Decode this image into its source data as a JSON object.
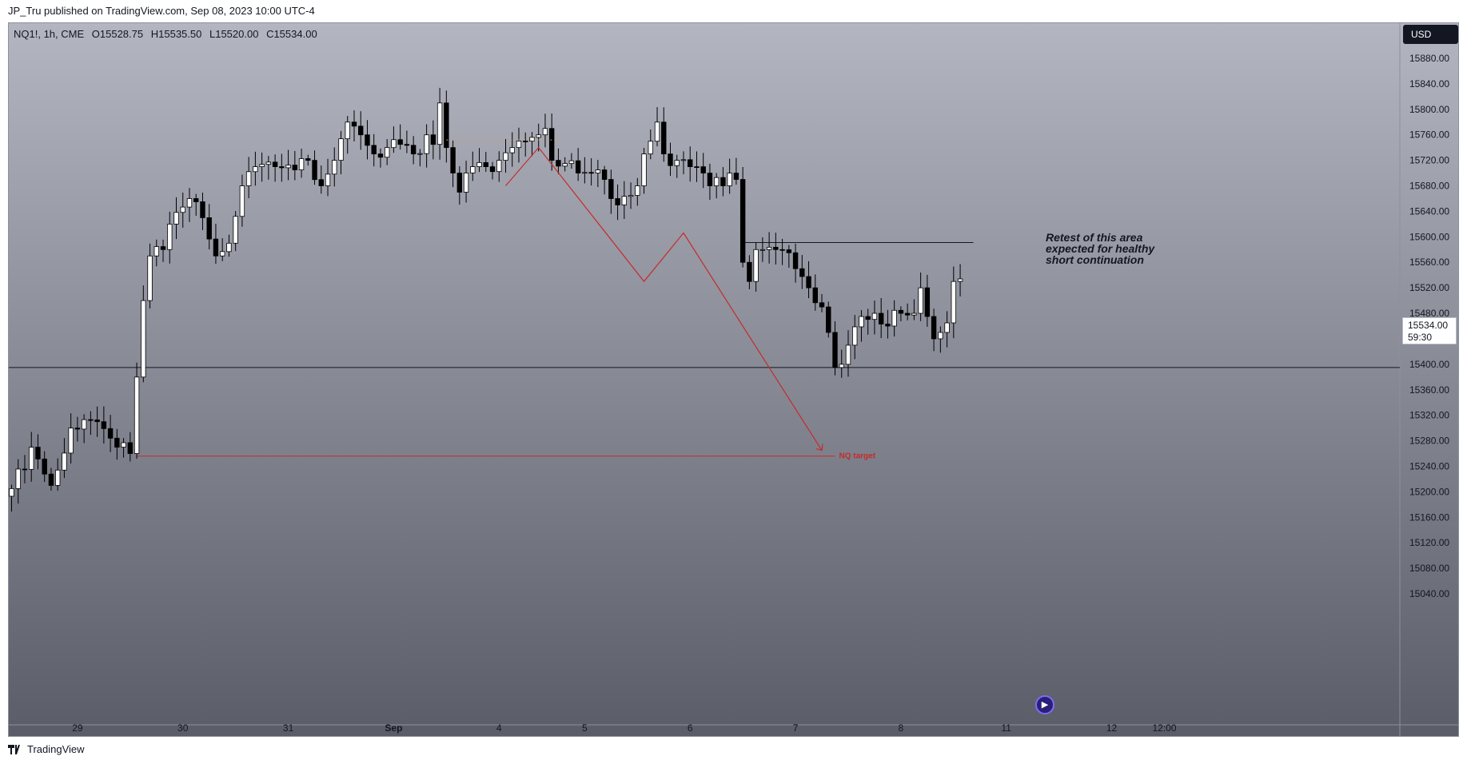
{
  "header": {
    "published_text": "JP_Tru published on TradingView.com, Sep 08, 2023 10:00 UTC-4"
  },
  "legend": {
    "symbol": "NQ1!, 1h, CME",
    "open": "O15528.75",
    "high": "H15535.50",
    "low": "L15520.00",
    "close": "C15534.00"
  },
  "currency_button": "USD",
  "last_price": {
    "price": "15534.00",
    "countdown": "59:30"
  },
  "annotation": {
    "lines": [
      "Retest of this area",
      "expected for healthy",
      "short continuation"
    ]
  },
  "target_label": "NQ target",
  "footer": {
    "brand": "TradingView"
  },
  "colors": {
    "background_top": "#b3b6c1",
    "background_bottom": "#5a5d68",
    "candle_up": "#ffffff",
    "candle_down": "#000000",
    "drawing_red": "#c62a2a",
    "horizontal_line": "#131722"
  },
  "icons": {
    "replay": "replay-icon",
    "logo": "tradingview-logo-icon"
  },
  "chart_data": {
    "type": "candlestick",
    "symbol": "NQ1!",
    "interval": "1h",
    "y_ticks": [
      15880,
      15840,
      15800,
      15760,
      15720,
      15680,
      15640,
      15600,
      15560,
      15520,
      15480,
      15440,
      15400,
      15360,
      15320,
      15280,
      15240,
      15200,
      15160,
      15120,
      15080,
      15040
    ],
    "y_tick_labels": [
      "15880.00",
      "15840.00",
      "15800.00",
      "15760.00",
      "15720.00",
      "15680.00",
      "15640.00",
      "15600.00",
      "15560.00",
      "15520.00",
      "15480.00",
      "15440.00",
      "15400.00",
      "15360.00",
      "15320.00",
      "15280.00",
      "15240.00",
      "15200.00",
      "15160.00",
      "15120.00",
      "15080.00",
      "15040.00"
    ],
    "x_ticks": [
      {
        "label": "29",
        "bar": 10
      },
      {
        "label": "30",
        "bar": 26
      },
      {
        "label": "31",
        "bar": 42
      },
      {
        "label": "Sep",
        "bar": 58
      },
      {
        "label": "4",
        "bar": 74
      },
      {
        "label": "5",
        "bar": 87
      },
      {
        "label": "6",
        "bar": 103
      },
      {
        "label": "7",
        "bar": 119
      },
      {
        "label": "8",
        "bar": 135
      },
      {
        "label": "11",
        "bar": 151
      },
      {
        "label": "12",
        "bar": 167
      },
      {
        "label": "12:00",
        "bar": 175
      }
    ],
    "anchors": [
      {
        "bar": 0,
        "price": 15205
      },
      {
        "bar": 3,
        "price": 15270
      },
      {
        "bar": 6,
        "price": 15210
      },
      {
        "bar": 9,
        "price": 15300
      },
      {
        "bar": 13,
        "price": 15310
      },
      {
        "bar": 16,
        "price": 15270
      },
      {
        "bar": 18,
        "price": 15260
      },
      {
        "bar": 19,
        "price": 15380
      },
      {
        "bar": 20,
        "price": 15500
      },
      {
        "bar": 21,
        "price": 15570
      },
      {
        "bar": 23,
        "price": 15580
      },
      {
        "bar": 24,
        "price": 15620
      },
      {
        "bar": 27,
        "price": 15660
      },
      {
        "bar": 29,
        "price": 15630
      },
      {
        "bar": 31,
        "price": 15570
      },
      {
        "bar": 33,
        "price": 15590
      },
      {
        "bar": 35,
        "price": 15680
      },
      {
        "bar": 37,
        "price": 15710
      },
      {
        "bar": 40,
        "price": 15710
      },
      {
        "bar": 43,
        "price": 15705
      },
      {
        "bar": 45,
        "price": 15720
      },
      {
        "bar": 47,
        "price": 15680
      },
      {
        "bar": 49,
        "price": 15720
      },
      {
        "bar": 51,
        "price": 15780
      },
      {
        "bar": 53,
        "price": 15760
      },
      {
        "bar": 55,
        "price": 15730
      },
      {
        "bar": 57,
        "price": 15740
      },
      {
        "bar": 59,
        "price": 15745
      },
      {
        "bar": 61,
        "price": 15730
      },
      {
        "bar": 63,
        "price": 15760
      },
      {
        "bar": 64,
        "price": 15745
      },
      {
        "bar": 65,
        "price": 15810
      },
      {
        "bar": 66,
        "price": 15740
      },
      {
        "bar": 67,
        "price": 15700
      },
      {
        "bar": 68,
        "price": 15670
      },
      {
        "bar": 70,
        "price": 15710
      },
      {
        "bar": 72,
        "price": 15710
      },
      {
        "bar": 74,
        "price": 15720
      },
      {
        "bar": 76,
        "price": 15740
      },
      {
        "bar": 78,
        "price": 15750
      },
      {
        "bar": 80,
        "price": 15760
      },
      {
        "bar": 81,
        "price": 15770
      },
      {
        "bar": 82,
        "price": 15720
      },
      {
        "bar": 84,
        "price": 15715
      },
      {
        "bar": 86,
        "price": 15700
      },
      {
        "bar": 88,
        "price": 15700
      },
      {
        "bar": 89,
        "price": 15705
      },
      {
        "bar": 90,
        "price": 15690
      },
      {
        "bar": 91,
        "price": 15660
      },
      {
        "bar": 92,
        "price": 15650
      },
      {
        "bar": 94,
        "price": 15665
      },
      {
        "bar": 95,
        "price": 15680
      },
      {
        "bar": 96,
        "price": 15730
      },
      {
        "bar": 97,
        "price": 15750
      },
      {
        "bar": 98,
        "price": 15780
      },
      {
        "bar": 99,
        "price": 15730
      },
      {
        "bar": 101,
        "price": 15720
      },
      {
        "bar": 103,
        "price": 15710
      },
      {
        "bar": 105,
        "price": 15700
      },
      {
        "bar": 106,
        "price": 15680
      },
      {
        "bar": 108,
        "price": 15680
      },
      {
        "bar": 109,
        "price": 15700
      },
      {
        "bar": 110,
        "price": 15690
      },
      {
        "bar": 111,
        "price": 15560
      },
      {
        "bar": 112,
        "price": 15530
      },
      {
        "bar": 113,
        "price": 15580
      },
      {
        "bar": 114,
        "price": 15580
      },
      {
        "bar": 116,
        "price": 15580
      },
      {
        "bar": 118,
        "price": 15575
      },
      {
        "bar": 119,
        "price": 15550
      },
      {
        "bar": 121,
        "price": 15520
      },
      {
        "bar": 123,
        "price": 15490
      },
      {
        "bar": 124,
        "price": 15450
      },
      {
        "bar": 125,
        "price": 15395
      },
      {
        "bar": 126,
        "price": 15400
      },
      {
        "bar": 127,
        "price": 15430
      },
      {
        "bar": 129,
        "price": 15475
      },
      {
        "bar": 131,
        "price": 15480
      },
      {
        "bar": 133,
        "price": 15460
      },
      {
        "bar": 135,
        "price": 15480
      },
      {
        "bar": 137,
        "price": 15480
      },
      {
        "bar": 138,
        "price": 15520
      },
      {
        "bar": 139,
        "price": 15475
      },
      {
        "bar": 140,
        "price": 15440
      },
      {
        "bar": 141,
        "price": 15450
      },
      {
        "bar": 142,
        "price": 15465
      },
      {
        "bar": 143,
        "price": 15530
      },
      {
        "bar": 144,
        "price": 15534
      }
    ],
    "horizontal_lines": [
      {
        "name": "support-level",
        "price": 15395
      },
      {
        "name": "retest-level",
        "price": 15591,
        "from_bar": 111,
        "to_bar": 146
      }
    ],
    "target_line": {
      "price": 15256,
      "from_bar": 19,
      "to_bar": 125,
      "label": "NQ target"
    },
    "projection_path": [
      {
        "bar": 75,
        "price": 15680
      },
      {
        "bar": 80,
        "price": 15740
      },
      {
        "bar": 96,
        "price": 15530
      },
      {
        "bar": 102,
        "price": 15606
      },
      {
        "bar": 123,
        "price": 15265
      }
    ],
    "last_price": 15534
  }
}
